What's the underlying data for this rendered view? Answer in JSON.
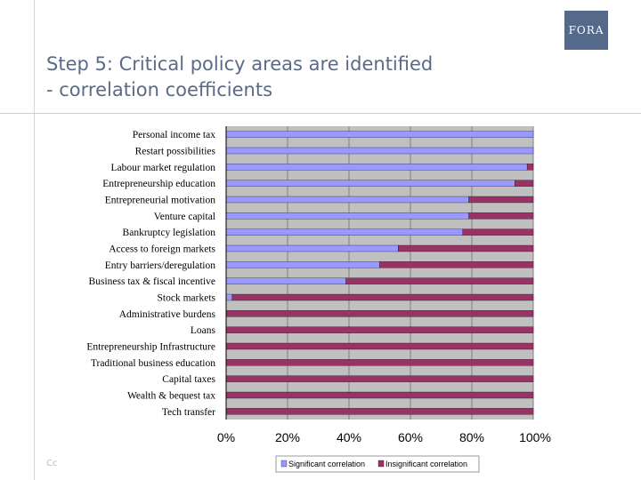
{
  "logo": {
    "text": "FORA"
  },
  "title": {
    "line1": "Step 5: Critical policy areas are identified",
    "line2": "- correlation coefficients"
  },
  "footer": {
    "text": "Cc"
  },
  "colors": {
    "significant": "#9999ff",
    "insignificant": "#993366",
    "plot_bg": "#c0c0c0",
    "grid": "#808080"
  },
  "chart_data": {
    "type": "bar",
    "orientation": "horizontal",
    "stacked": true,
    "categories": [
      "Personal income tax",
      "Restart possibilities",
      "Labour market regulation",
      "Entrepreneurship education",
      "Entrepreneurial motivation",
      "Venture capital",
      "Bankruptcy legislation",
      "Access to foreign markets",
      "Entry barriers/deregulation",
      "Business tax & fiscal incentive",
      "Stock markets",
      "Administrative burdens",
      "Loans",
      "Entrepreneurship Infrastructure",
      "Traditional business education",
      "Capital taxes",
      "Wealth & bequest tax",
      "Tech transfer"
    ],
    "series": [
      {
        "name": "Significant correlation",
        "values": [
          100,
          100,
          98,
          94,
          79,
          79,
          77,
          56,
          50,
          39,
          2,
          0,
          0,
          0,
          0,
          0,
          0,
          0
        ]
      },
      {
        "name": "Insignificant correlation",
        "values": [
          0,
          0,
          2,
          6,
          21,
          21,
          23,
          44,
          50,
          61,
          98,
          100,
          100,
          100,
          100,
          100,
          100,
          100
        ]
      }
    ],
    "x_ticks": [
      "0%",
      "20%",
      "40%",
      "60%",
      "80%",
      "100%"
    ],
    "xlim": [
      0,
      100
    ],
    "grid": true,
    "legend_position": "bottom"
  }
}
